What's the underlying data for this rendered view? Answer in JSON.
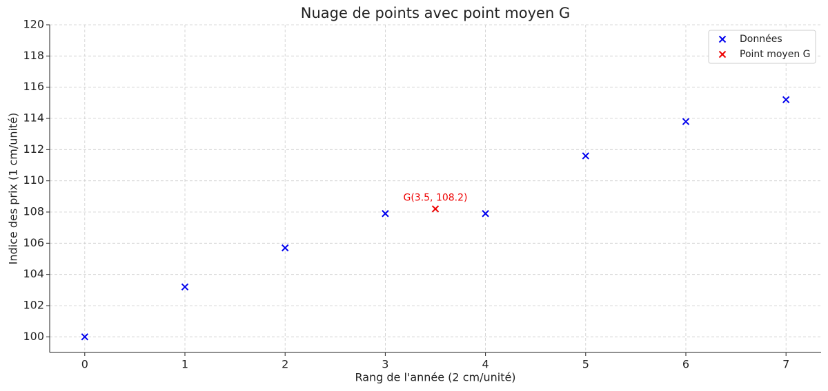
{
  "chart_data": {
    "type": "scatter",
    "title": "Nuage de points avec point moyen G",
    "x_label": "Rang de l'année (2 cm/unité)",
    "y_label": "Indice des prix (1 cm/unité)",
    "series": [
      {
        "name": "Données",
        "color": "#0000ee",
        "x": [
          0,
          1,
          2,
          3,
          4,
          5,
          6,
          7
        ],
        "values": [
          100,
          103.2,
          105.7,
          107.9,
          107.9,
          111.6,
          113.8,
          115.2
        ]
      },
      {
        "name": "Point moyen G",
        "color": "#ee0000",
        "x": [
          3.5
        ],
        "values": [
          108.2
        ]
      }
    ],
    "annotation": "G(3.5, 108.2)",
    "xlim": [
      -0.35,
      7.35
    ],
    "xticks": [
      0,
      1,
      2,
      3,
      4,
      5,
      6,
      7
    ],
    "ylim": [
      99,
      120
    ],
    "yticks": [
      100,
      102,
      104,
      106,
      108,
      110,
      112,
      114,
      116,
      118,
      120
    ],
    "grid": true,
    "legend": "upper right"
  }
}
